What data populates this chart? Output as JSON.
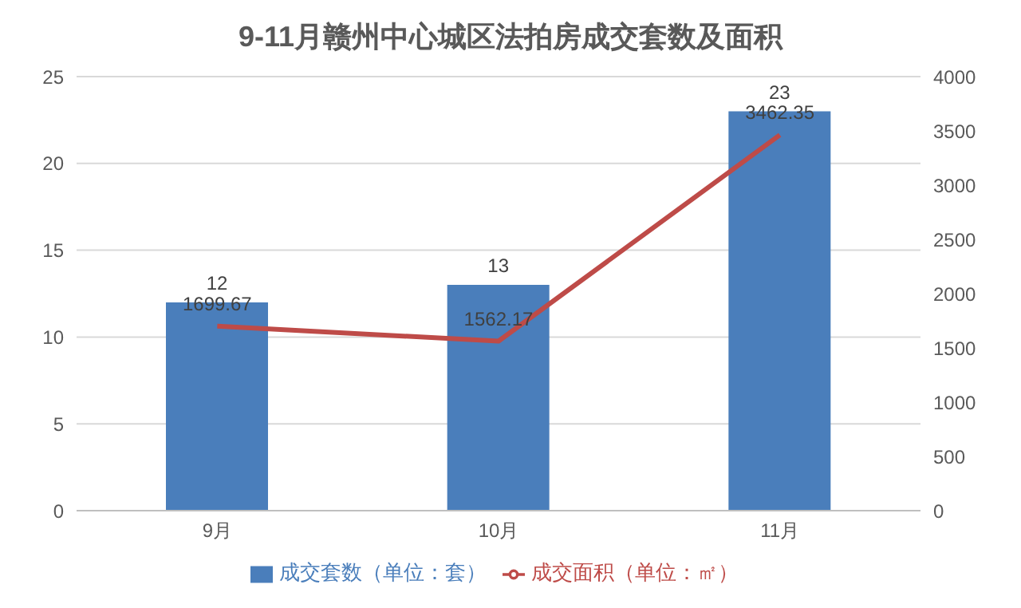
{
  "chart_data": {
    "type": "bar",
    "title": "9-11月赣州中心城区法拍房成交套数及面积",
    "categories": [
      "9月",
      "10月",
      "11月"
    ],
    "series": [
      {
        "name": "成交套数（单位：套）",
        "color": "#4a7ebb",
        "values": [
          12,
          13,
          23
        ]
      },
      {
        "name": "成交面积（单位：㎡）",
        "type": "line",
        "axis": "y2",
        "color": "#be4b48",
        "values": [
          1699.67,
          1562.17,
          3462.35
        ]
      }
    ],
    "ylim": [
      0,
      25
    ],
    "yticks": [
      0,
      5,
      10,
      15,
      20,
      25
    ],
    "y2lim": [
      0,
      4000
    ],
    "y2ticks": [
      0,
      500,
      1000,
      1500,
      2000,
      2500,
      3000,
      3500,
      4000
    ],
    "data_labels": true,
    "grid": "y",
    "legend": "bottom",
    "marker": "none",
    "line_style": "solid"
  }
}
